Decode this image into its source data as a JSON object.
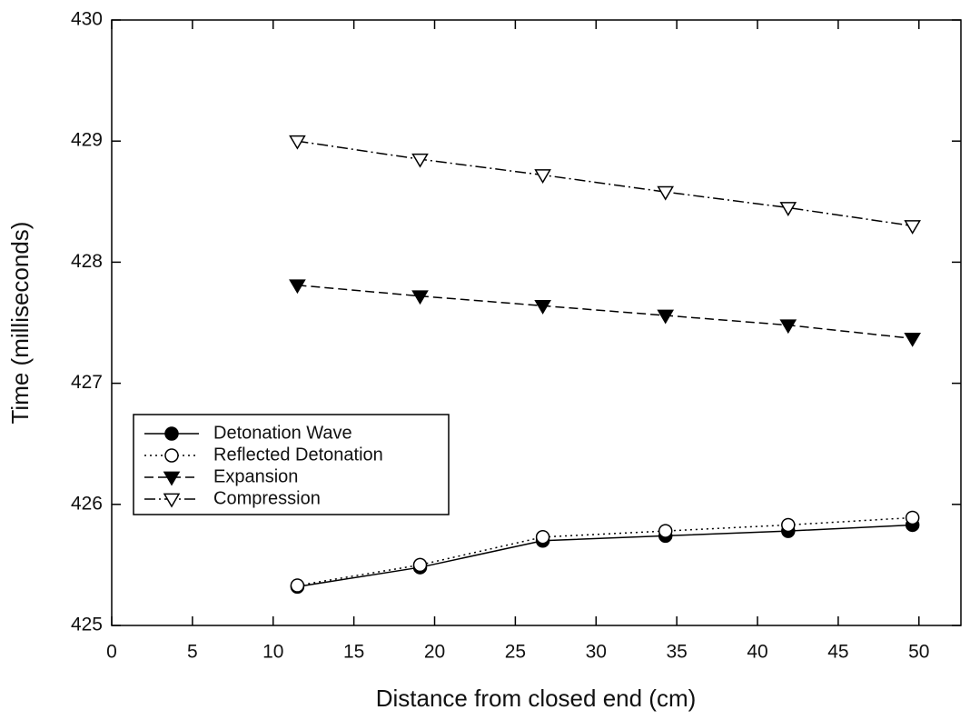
{
  "chart_data": {
    "type": "line",
    "x_label": "Distance from closed end (cm)",
    "y_label": "Time (milliseconds)",
    "x": [
      11.5,
      19.1,
      26.7,
      34.3,
      41.9,
      49.6
    ],
    "series": [
      {
        "name": "Detonation Wave",
        "color": "#000000",
        "marker": "circle-filled",
        "dash": "solid",
        "values": [
          425.32,
          425.48,
          425.7,
          425.74,
          425.78,
          425.83
        ]
      },
      {
        "name": "Reflected Detonation",
        "color": "#000000",
        "marker": "circle-open",
        "dash": "dotted",
        "values": [
          425.33,
          425.5,
          425.73,
          425.78,
          425.83,
          425.89
        ]
      },
      {
        "name": "Expansion",
        "color": "#000000",
        "marker": "triangle-down-filled",
        "dash": "dashed",
        "values": [
          427.81,
          427.72,
          427.64,
          427.56,
          427.48,
          427.37
        ]
      },
      {
        "name": "Compression",
        "color": "#000000",
        "marker": "triangle-down-open",
        "dash": "dashdot",
        "values": [
          429.0,
          428.85,
          428.72,
          428.58,
          428.45,
          428.3
        ]
      }
    ],
    "xlim": [
      0,
      52.6
    ],
    "xticks": [
      0,
      5,
      10,
      15,
      20,
      25,
      30,
      35,
      40,
      45,
      50
    ],
    "ylim": [
      425,
      430
    ],
    "yticks": [
      425,
      426,
      427,
      428,
      429,
      430
    ],
    "legend": "lower-left",
    "grid": false
  }
}
